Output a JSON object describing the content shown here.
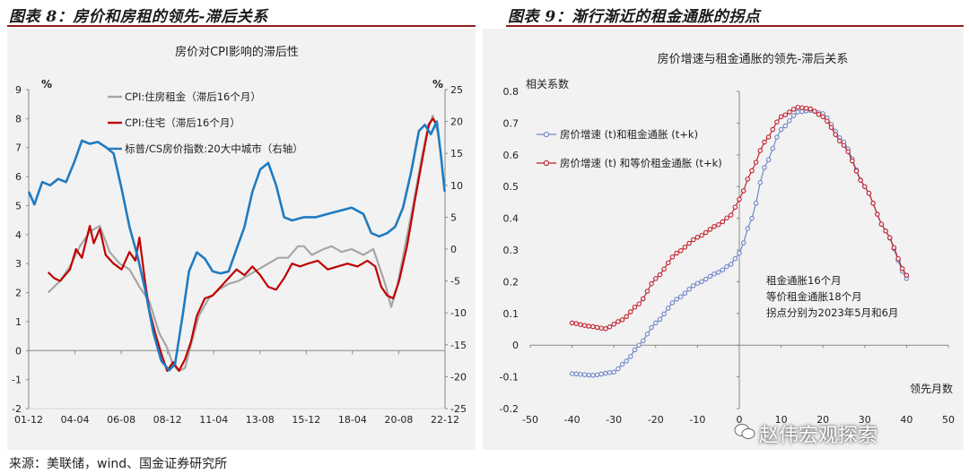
{
  "figure1": {
    "title": "图表 8：房价和房租的领先-滞后关系",
    "chart_data": {
      "type": "line",
      "title": "房价对CPI影响的滞后性",
      "left_unit": "%",
      "right_unit": "%",
      "ylim_left": [
        -2,
        9
      ],
      "ylim_right": [
        -25,
        25
      ],
      "yticks_left": [
        "9",
        "8",
        "7",
        "6",
        "5",
        "4",
        "3",
        "2",
        "1",
        "0",
        "-1",
        "-2"
      ],
      "yticks_right": [
        "25",
        "20",
        "15",
        "10",
        "5",
        "0",
        "-5",
        "-10",
        "-15",
        "-20",
        "-25"
      ],
      "xticks": [
        "01-12",
        "04-04",
        "06-08",
        "08-12",
        "11-04",
        "13-08",
        "15-12",
        "18-04",
        "20-08",
        "22-12"
      ],
      "xrange": [
        2001.917,
        2022.917
      ],
      "legend_position": "top-left",
      "series": [
        {
          "name": "CPI:住房租金（滞后16个月）",
          "color": "#a6a6a6",
          "axis": "left",
          "points": [
            [
              2002.9,
              2.0
            ],
            [
              2003.5,
              2.4
            ],
            [
              2004.0,
              2.9
            ],
            [
              2004.5,
              3.6
            ],
            [
              2005.0,
              4.1
            ],
            [
              2005.5,
              4.3
            ],
            [
              2006.0,
              3.4
            ],
            [
              2006.5,
              3.0
            ],
            [
              2007.0,
              2.8
            ],
            [
              2007.5,
              2.2
            ],
            [
              2008.0,
              1.7
            ],
            [
              2008.5,
              0.6
            ],
            [
              2008.9,
              0.1
            ],
            [
              2009.2,
              -0.5
            ],
            [
              2009.5,
              -0.7
            ],
            [
              2009.8,
              -0.6
            ],
            [
              2010.1,
              0.2
            ],
            [
              2010.5,
              1.2
            ],
            [
              2011.0,
              1.8
            ],
            [
              2011.5,
              2.1
            ],
            [
              2012.0,
              2.3
            ],
            [
              2012.5,
              2.4
            ],
            [
              2013.0,
              2.6
            ],
            [
              2013.5,
              2.8
            ],
            [
              2014.0,
              3.0
            ],
            [
              2014.5,
              3.2
            ],
            [
              2015.0,
              3.2
            ],
            [
              2015.5,
              3.6
            ],
            [
              2015.8,
              3.6
            ],
            [
              2016.2,
              3.3
            ],
            [
              2016.8,
              3.5
            ],
            [
              2017.2,
              3.6
            ],
            [
              2017.7,
              3.4
            ],
            [
              2018.2,
              3.5
            ],
            [
              2018.8,
              3.3
            ],
            [
              2019.3,
              3.5
            ],
            [
              2019.6,
              2.9
            ],
            [
              2019.9,
              2.3
            ],
            [
              2020.2,
              1.5
            ],
            [
              2020.5,
              2.2
            ],
            [
              2020.9,
              3.6
            ],
            [
              2021.3,
              5.0
            ],
            [
              2021.7,
              6.5
            ],
            [
              2022.0,
              7.5
            ],
            [
              2022.3,
              8.1
            ],
            [
              2022.6,
              7.4
            ]
          ]
        },
        {
          "name": "CPI:住宅（滞后16个月）",
          "color": "#c00000",
          "axis": "left",
          "points": [
            [
              2002.9,
              2.7
            ],
            [
              2003.2,
              2.5
            ],
            [
              2003.5,
              2.4
            ],
            [
              2004.0,
              2.8
            ],
            [
              2004.3,
              3.5
            ],
            [
              2004.6,
              3.2
            ],
            [
              2005.0,
              4.3
            ],
            [
              2005.2,
              3.7
            ],
            [
              2005.5,
              4.2
            ],
            [
              2005.8,
              3.3
            ],
            [
              2006.2,
              3.0
            ],
            [
              2006.6,
              2.8
            ],
            [
              2007.0,
              3.4
            ],
            [
              2007.3,
              3.1
            ],
            [
              2007.5,
              3.9
            ],
            [
              2007.8,
              2.3
            ],
            [
              2008.0,
              1.4
            ],
            [
              2008.3,
              0.6
            ],
            [
              2008.6,
              -0.1
            ],
            [
              2008.9,
              -0.7
            ],
            [
              2009.2,
              -0.4
            ],
            [
              2009.5,
              -0.7
            ],
            [
              2009.8,
              -0.3
            ],
            [
              2010.1,
              0.3
            ],
            [
              2010.4,
              1.2
            ],
            [
              2010.8,
              1.8
            ],
            [
              2011.2,
              1.9
            ],
            [
              2011.6,
              2.2
            ],
            [
              2012.0,
              2.5
            ],
            [
              2012.4,
              2.8
            ],
            [
              2012.8,
              2.6
            ],
            [
              2013.2,
              2.9
            ],
            [
              2013.6,
              2.6
            ],
            [
              2014.0,
              2.2
            ],
            [
              2014.4,
              2.1
            ],
            [
              2014.8,
              2.5
            ],
            [
              2015.2,
              3.0
            ],
            [
              2015.6,
              2.9
            ],
            [
              2016.0,
              3.0
            ],
            [
              2016.5,
              3.1
            ],
            [
              2017.0,
              2.8
            ],
            [
              2017.5,
              2.9
            ],
            [
              2018.0,
              3.0
            ],
            [
              2018.5,
              2.9
            ],
            [
              2019.0,
              3.1
            ],
            [
              2019.4,
              2.9
            ],
            [
              2019.7,
              2.2
            ],
            [
              2020.0,
              1.9
            ],
            [
              2020.3,
              1.8
            ],
            [
              2020.6,
              2.4
            ],
            [
              2021.0,
              3.6
            ],
            [
              2021.4,
              5.2
            ],
            [
              2021.8,
              6.7
            ],
            [
              2022.1,
              7.8
            ],
            [
              2022.3,
              8.0
            ],
            [
              2022.5,
              7.8
            ]
          ]
        },
        {
          "name": "标普/CS房价指数:20大中城市（右轴）",
          "color": "#1f7bc1",
          "axis": "right",
          "points": [
            [
              2001.92,
              9.0
            ],
            [
              2002.2,
              7.0
            ],
            [
              2002.6,
              10.5
            ],
            [
              2003.0,
              10.0
            ],
            [
              2003.4,
              11.0
            ],
            [
              2003.8,
              10.5
            ],
            [
              2004.2,
              13.5
            ],
            [
              2004.6,
              17.0
            ],
            [
              2005.0,
              16.5
            ],
            [
              2005.4,
              16.8
            ],
            [
              2005.8,
              16.0
            ],
            [
              2006.2,
              15.0
            ],
            [
              2006.6,
              9.5
            ],
            [
              2007.0,
              3.5
            ],
            [
              2007.4,
              -1.0
            ],
            [
              2007.8,
              -6.5
            ],
            [
              2008.2,
              -13.0
            ],
            [
              2008.6,
              -17.5
            ],
            [
              2009.0,
              -19.0
            ],
            [
              2009.3,
              -18.0
            ],
            [
              2009.7,
              -10.0
            ],
            [
              2010.0,
              -3.5
            ],
            [
              2010.4,
              -0.5
            ],
            [
              2010.8,
              -1.5
            ],
            [
              2011.2,
              -3.5
            ],
            [
              2011.6,
              -3.8
            ],
            [
              2012.0,
              -3.5
            ],
            [
              2012.4,
              0.0
            ],
            [
              2012.8,
              3.5
            ],
            [
              2013.2,
              9.0
            ],
            [
              2013.6,
              12.5
            ],
            [
              2014.0,
              13.5
            ],
            [
              2014.4,
              10.0
            ],
            [
              2014.8,
              5.0
            ],
            [
              2015.2,
              4.5
            ],
            [
              2015.8,
              5.0
            ],
            [
              2016.4,
              5.0
            ],
            [
              2017.0,
              5.5
            ],
            [
              2017.6,
              6.0
            ],
            [
              2018.2,
              6.5
            ],
            [
              2018.8,
              5.5
            ],
            [
              2019.2,
              2.5
            ],
            [
              2019.6,
              2.0
            ],
            [
              2020.0,
              2.5
            ],
            [
              2020.4,
              3.5
            ],
            [
              2020.8,
              6.5
            ],
            [
              2021.2,
              12.0
            ],
            [
              2021.6,
              18.5
            ],
            [
              2021.9,
              19.5
            ],
            [
              2022.2,
              18.0
            ],
            [
              2022.5,
              20.0
            ],
            [
              2022.7,
              15.0
            ],
            [
              2022.9,
              9.0
            ]
          ]
        }
      ]
    }
  },
  "figure2": {
    "title": "图表 9：渐行渐近的租金通胀的拐点",
    "chart_data": {
      "type": "line",
      "title": "房价增速与租金通胀的领先-滞后关系",
      "ylabel": "相关系数",
      "xlabel": "领先月数",
      "xlim": [
        -50,
        50
      ],
      "ylim": [
        -0.2,
        0.8
      ],
      "xticks": [
        "-50",
        "-40",
        "-30",
        "-20",
        "-10",
        "0",
        "10",
        "20",
        "30",
        "40",
        "50"
      ],
      "yticks": [
        "0.8",
        "0.7",
        "0.6",
        "0.5",
        "0.4",
        "0.3",
        "0.2",
        "0.1",
        "0",
        "-0.1",
        "-0.2"
      ],
      "legend_position": "top-left",
      "annotation": [
        "租金通胀16个月",
        "等价租金通胀18个月",
        "拐点分别为2023年5月和6月"
      ],
      "series": [
        {
          "name": "房价增速 (t)和租金通胀 (t+k)",
          "color": "#6f87c9",
          "marker": "circle",
          "x_range": [
            -40,
            40
          ],
          "knots": [
            [
              -40,
              -0.09
            ],
            [
              -35,
              -0.095
            ],
            [
              -30,
              -0.085
            ],
            [
              -27,
              -0.05
            ],
            [
              -24,
              0.0
            ],
            [
              -20,
              0.07
            ],
            [
              -15,
              0.145
            ],
            [
              -10,
              0.195
            ],
            [
              -5,
              0.23
            ],
            [
              -2,
              0.255
            ],
            [
              0,
              0.29
            ],
            [
              3,
              0.4
            ],
            [
              6,
              0.56
            ],
            [
              10,
              0.68
            ],
            [
              14,
              0.735
            ],
            [
              17,
              0.74
            ],
            [
              20,
              0.73
            ],
            [
              25,
              0.64
            ],
            [
              30,
              0.5
            ],
            [
              35,
              0.36
            ],
            [
              40,
              0.21
            ]
          ]
        },
        {
          "name": "房价增速 (t) 和等价租金通胀 (t+k)",
          "color": "#c0202b",
          "marker": "circle",
          "x_range": [
            -40,
            40
          ],
          "knots": [
            [
              -40,
              0.07
            ],
            [
              -36,
              0.06
            ],
            [
              -32,
              0.052
            ],
            [
              -28,
              0.08
            ],
            [
              -24,
              0.13
            ],
            [
              -20,
              0.21
            ],
            [
              -15,
              0.29
            ],
            [
              -10,
              0.34
            ],
            [
              -5,
              0.38
            ],
            [
              -2,
              0.41
            ],
            [
              0,
              0.46
            ],
            [
              3,
              0.55
            ],
            [
              6,
              0.64
            ],
            [
              10,
              0.72
            ],
            [
              14,
              0.75
            ],
            [
              17,
              0.745
            ],
            [
              20,
              0.72
            ],
            [
              25,
              0.63
            ],
            [
              30,
              0.5
            ],
            [
              35,
              0.36
            ],
            [
              40,
              0.22
            ]
          ]
        }
      ]
    }
  },
  "source": "来源：美联储，wind、国金证券研究所",
  "watermark": "赵伟宏观探索"
}
